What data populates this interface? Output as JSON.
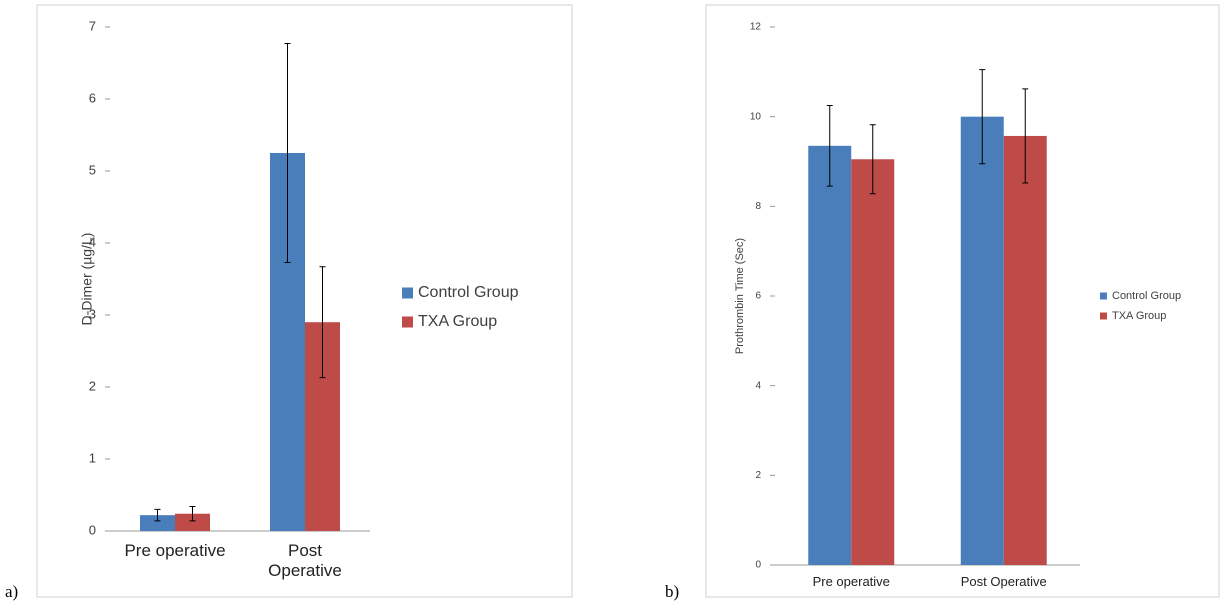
{
  "chart_data": [
    {
      "type": "bar",
      "panel_label": "a)",
      "y_label": "D-Dimer (µg/L)",
      "categories": [
        "Pre operative",
        "Post Operative"
      ],
      "series": [
        {
          "name": "Control Group",
          "color": "#4a7ebb",
          "values": [
            0.22,
            5.25
          ],
          "errors": [
            0.08,
            1.52
          ]
        },
        {
          "name": "TXA Group",
          "color": "#be4b48",
          "values": [
            0.24,
            2.9
          ],
          "errors": [
            0.1,
            0.77
          ]
        }
      ],
      "ylim": [
        0,
        7
      ],
      "yticks": [
        0,
        1,
        2,
        3,
        4,
        5,
        6,
        7
      ],
      "grid": false,
      "legend": "right"
    },
    {
      "type": "bar",
      "panel_label": "b)",
      "y_label": "Prothrombin Time (Sec)",
      "categories": [
        "Pre operative",
        "Post Operative"
      ],
      "series": [
        {
          "name": "Control Group",
          "color": "#4a7ebb",
          "values": [
            9.35,
            10.0
          ],
          "errors": [
            0.9,
            1.05
          ]
        },
        {
          "name": "TXA Group",
          "color": "#be4b48",
          "values": [
            9.05,
            9.57
          ],
          "errors": [
            0.77,
            1.05
          ]
        }
      ],
      "ylim": [
        0,
        12
      ],
      "yticks": [
        0,
        2,
        4,
        6,
        8,
        10,
        12
      ],
      "grid": false,
      "legend": "right"
    }
  ]
}
